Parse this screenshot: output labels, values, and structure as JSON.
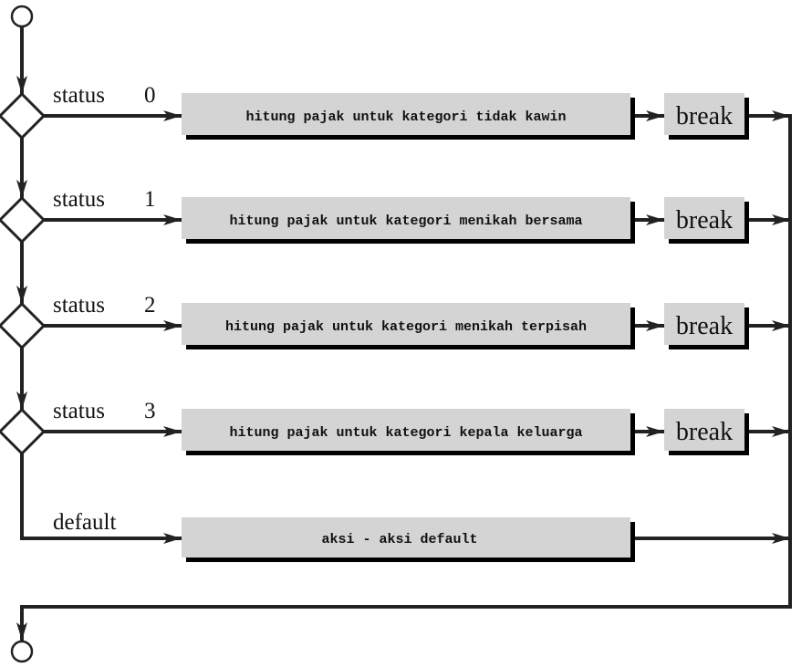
{
  "colors": {
    "box_fill": "#d4d4d4",
    "shadow": "#000000",
    "line": "#222222"
  },
  "cases": [
    {
      "label": "status",
      "value": "0",
      "action": "hitung pajak untuk kategori tidak kawin",
      "break": "break"
    },
    {
      "label": "status",
      "value": "1",
      "action": "hitung pajak untuk kategori menikah bersama",
      "break": "break"
    },
    {
      "label": "status",
      "value": "2",
      "action": "hitung pajak untuk kategori menikah terpisah",
      "break": "break"
    },
    {
      "label": "status",
      "value": "3",
      "action": "hitung pajak untuk kategori kepala keluarga",
      "break": "break"
    }
  ],
  "default": {
    "label": "default",
    "action": "aksi - aksi default"
  }
}
